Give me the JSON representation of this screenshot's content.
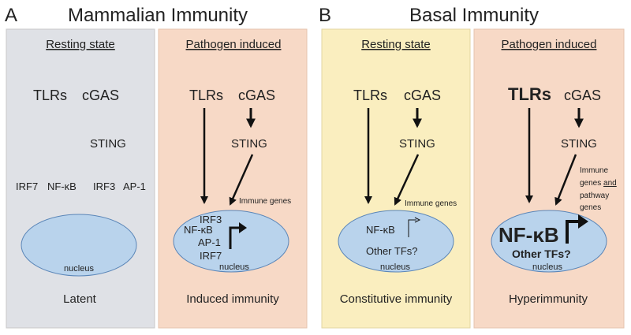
{
  "colors": {
    "resting_mammalian": "#dfe1e6",
    "pathogen_induced": "#f7d9c6",
    "resting_basal": "#faeebf",
    "nucleus_fill": "#b9d3ec",
    "nucleus_stroke": "#5b86b8",
    "text": "#222222"
  },
  "figure_a": {
    "letter": "A",
    "title": "Mammalian Immunity",
    "resting": {
      "heading": "Resting state",
      "tlrs": "TLRs",
      "cgas": "cGAS",
      "sting": "STING",
      "irf7": "IRF7",
      "nfkb": "NF-κB",
      "irf3": "IRF3",
      "ap1": "AP-1",
      "nucleus": "nucleus",
      "footer": "Latent"
    },
    "induced": {
      "heading": "Pathogen induced",
      "tlrs": "TLRs",
      "cgas": "cGAS",
      "sting": "STING",
      "immune_genes": "Immune genes",
      "irf3": "IRF3",
      "nfkb": "NF-κB",
      "ap1": "AP-1",
      "irf7": "IRF7",
      "nucleus": "nucleus",
      "footer": "Induced immunity"
    }
  },
  "figure_b": {
    "letter": "B",
    "title": "Basal Immunity",
    "resting": {
      "heading": "Resting state",
      "tlrs": "TLRs",
      "cgas": "cGAS",
      "sting": "STING",
      "immune_genes": "Immune genes",
      "nfkb": "NF-κB",
      "other_tfs": "Other TFs?",
      "nucleus": "nucleus",
      "footer": "Constitutive immunity"
    },
    "induced": {
      "heading": "Pathogen induced",
      "tlrs": "TLRs",
      "cgas": "cGAS",
      "sting": "STING",
      "genes_line1": "Immune",
      "genes_line2": "genes",
      "genes_line2b": "and",
      "genes_line3": "pathway",
      "genes_line4": "genes",
      "nfkb": "NF-κB",
      "other_tfs": "Other TFs?",
      "nucleus": "nucleus",
      "footer": "Hyperimmunity"
    }
  }
}
